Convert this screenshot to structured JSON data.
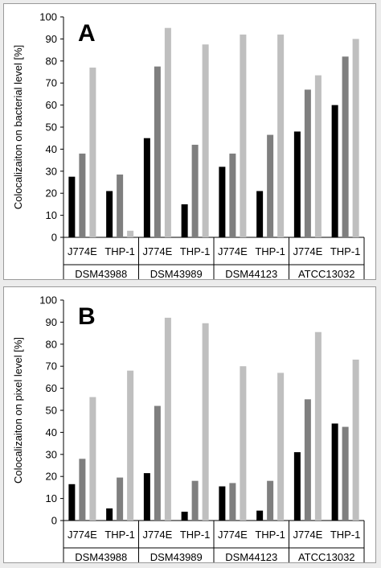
{
  "chart_data": [
    {
      "type": "bar",
      "panel_label": "A",
      "ylabel": "Colocalizaiton on bacterial level [%]",
      "ylim": [
        0,
        100
      ],
      "yticks": [
        0,
        10,
        20,
        30,
        40,
        50,
        60,
        70,
        80,
        90,
        100
      ],
      "groups": [
        "DSM43988",
        "DSM43989",
        "DSM44123",
        "ATCC13032"
      ],
      "categories": [
        "J774E",
        "THP-1",
        "J774E",
        "THP-1",
        "J774E",
        "THP-1",
        "J774E",
        "THP-1"
      ],
      "series": [
        {
          "color": "#000000",
          "values": [
            27.5,
            21,
            45,
            15,
            32,
            21,
            48,
            60
          ]
        },
        {
          "color": "#7f7f7f",
          "values": [
            38,
            28.5,
            77.5,
            42,
            38,
            46.5,
            67,
            82
          ]
        },
        {
          "color": "#bfbfbf",
          "values": [
            77,
            3,
            95,
            87.5,
            92,
            92,
            73.5,
            90
          ]
        }
      ],
      "grid": false,
      "legend": "none"
    },
    {
      "type": "bar",
      "panel_label": "B",
      "ylabel": "Colocalizaiton on pixel level [%]",
      "ylim": [
        0,
        100
      ],
      "yticks": [
        0,
        10,
        20,
        30,
        40,
        50,
        60,
        70,
        80,
        90,
        100
      ],
      "groups": [
        "DSM43988",
        "DSM43989",
        "DSM44123",
        "ATCC13032"
      ],
      "categories": [
        "J774E",
        "THP-1",
        "J774E",
        "THP-1",
        "J774E",
        "THP-1",
        "J774E",
        "THP-1"
      ],
      "series": [
        {
          "color": "#000000",
          "values": [
            16.5,
            5.5,
            21.5,
            4,
            15.5,
            4.5,
            31,
            44
          ]
        },
        {
          "color": "#7f7f7f",
          "values": [
            28,
            19.5,
            52,
            18,
            17,
            18,
            55,
            42.5
          ]
        },
        {
          "color": "#bfbfbf",
          "values": [
            56,
            68,
            92,
            89.5,
            70,
            67,
            85.5,
            73
          ]
        }
      ],
      "grid": false,
      "legend": "none"
    }
  ]
}
